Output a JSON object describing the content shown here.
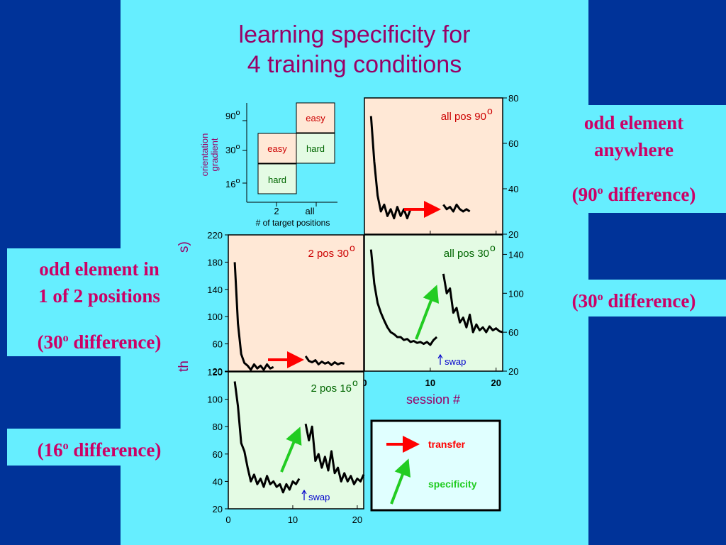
{
  "title": {
    "line1": "learning specificity for",
    "line2": "4 training conditions"
  },
  "callouts": {
    "top_right": {
      "line1": "odd element",
      "line2": "anywhere",
      "line3_pre": "(90",
      "sup": "o",
      "line3_post": " difference)"
    },
    "mid_right": {
      "pre": "(30",
      "sup": "o",
      "post": " difference)"
    },
    "mid_left": {
      "line1": "odd element in",
      "line2": "1 of 2 positions",
      "line3_pre": "(30",
      "sup": "o",
      "line3_post": " difference)"
    },
    "bottom_left": {
      "pre": "(16",
      "sup": "o",
      "post": " difference)"
    }
  },
  "design_grid": {
    "ylabel_line1": "orientation",
    "ylabel_line2": "gradient",
    "xlabel": "# of target positions",
    "y_ticks": [
      {
        "label": "90",
        "sup": "o"
      },
      {
        "label": "30",
        "sup": "o"
      },
      {
        "label": "16",
        "sup": "o"
      }
    ],
    "x_ticks": [
      "2",
      "all"
    ],
    "cells": {
      "all_90": "easy",
      "pos2_30": "easy",
      "all_30": "hard",
      "pos2_16": "hard"
    }
  },
  "legend": {
    "transfer": "transfer",
    "specificity": "specificity"
  },
  "axis_text": {
    "session_label": "session #",
    "threshold_label_fragment_left": "th",
    "threshold_label_fragment_top": "s)",
    "swap": "swap"
  },
  "chart_data": [
    {
      "type": "line",
      "panel": "all pos 90",
      "label": "all pos 90",
      "label_sup": "o",
      "x_ticks": [
        "0",
        "10",
        "20"
      ],
      "y_axis_side": "right",
      "ylim": [
        20,
        80
      ],
      "y_ticks": [
        20,
        40,
        60,
        80
      ],
      "xlim": [
        0,
        21
      ],
      "series": [
        {
          "x": [
            1,
            1.5,
            2,
            2.5,
            3,
            3.5,
            4,
            4.5,
            5,
            5.5,
            6,
            6.5,
            7
          ],
          "y": [
            72,
            52,
            37,
            30,
            33,
            28,
            31,
            27,
            32,
            28,
            31,
            27,
            31
          ]
        },
        {
          "x": [
            12,
            12.5,
            13,
            13.5,
            14,
            14.5,
            15,
            15.5,
            16
          ],
          "y": [
            33,
            31,
            32,
            30,
            33,
            31,
            30,
            31,
            30
          ]
        }
      ],
      "annotations": [
        "transfer arrow"
      ]
    },
    {
      "type": "line",
      "panel": "all pos 30",
      "label": "all pos 30",
      "label_sup": "o",
      "x_ticks": [
        "0",
        "10",
        "20"
      ],
      "y_axis_side": "right",
      "ylim": [
        20,
        160
      ],
      "y_ticks": [
        20,
        60,
        100,
        140
      ],
      "xlim": [
        0,
        21
      ],
      "series": [
        {
          "x": [
            1,
            1.5,
            2,
            2.5,
            3,
            3.5,
            4,
            4.5,
            5,
            5.5,
            6,
            6.5,
            7,
            7.5,
            8,
            8.5,
            9,
            9.5,
            10,
            10.5,
            11
          ],
          "y": [
            145,
            110,
            90,
            80,
            72,
            65,
            60,
            58,
            55,
            55,
            52,
            53,
            50,
            51,
            49,
            50,
            48,
            50,
            47,
            52,
            55
          ]
        },
        {
          "x": [
            12,
            12.5,
            13,
            13.5,
            14,
            14.5,
            15,
            15.5,
            16,
            16.5,
            17,
            17.5,
            18,
            18.5,
            19,
            19.5,
            20,
            20.5,
            21
          ],
          "y": [
            120,
            100,
            105,
            80,
            85,
            70,
            75,
            65,
            78,
            60,
            68,
            62,
            65,
            60,
            66,
            62,
            64,
            61,
            60
          ]
        }
      ],
      "annotations": [
        "specificity arrow",
        "swap"
      ]
    },
    {
      "type": "line",
      "panel": "2 pos 30",
      "label": "2 pos 30",
      "label_sup": "o",
      "y_axis_side": "left",
      "ylim": [
        20,
        220
      ],
      "y_ticks": [
        20,
        60,
        100,
        140,
        180,
        220
      ],
      "xlim": [
        0,
        21
      ],
      "series": [
        {
          "x": [
            1,
            1.5,
            2,
            2.5,
            3,
            3.5,
            4,
            4.5,
            5,
            5.5,
            6,
            6.5,
            7
          ],
          "y": [
            180,
            90,
            45,
            32,
            28,
            22,
            30,
            24,
            28,
            22,
            30,
            24,
            26
          ]
        },
        {
          "x": [
            12,
            12.5,
            13,
            13.5,
            14,
            14.5,
            15,
            15.5,
            16,
            16.5,
            17,
            17.5,
            18
          ],
          "y": [
            42,
            35,
            33,
            36,
            30,
            34,
            31,
            33,
            29,
            33,
            30,
            32,
            31
          ]
        }
      ],
      "annotations": [
        "transfer arrow"
      ]
    },
    {
      "type": "line",
      "panel": "2 pos 16",
      "label": "2 pos 16",
      "label_sup": "o",
      "x_ticks": [
        "0",
        "10",
        "20"
      ],
      "y_axis_side": "left",
      "ylim": [
        20,
        120
      ],
      "y_ticks": [
        20,
        40,
        60,
        80,
        100,
        120
      ],
      "xlim": [
        0,
        21
      ],
      "series": [
        {
          "x": [
            1,
            1.5,
            2,
            2.5,
            3,
            3.5,
            4,
            4.5,
            5,
            5.5,
            6,
            6.5,
            7,
            7.5,
            8,
            8.5,
            9,
            9.5,
            10,
            10.5,
            11
          ],
          "y": [
            113,
            95,
            68,
            62,
            50,
            40,
            45,
            38,
            42,
            36,
            44,
            38,
            40,
            36,
            38,
            32,
            38,
            34,
            40,
            38,
            42
          ]
        },
        {
          "x": [
            12,
            12.5,
            13,
            13.5,
            14,
            14.5,
            15,
            15.5,
            16,
            16.5,
            17,
            17.5,
            18,
            18.5,
            19,
            19.5,
            20,
            20.5,
            21
          ],
          "y": [
            82,
            70,
            80,
            55,
            60,
            50,
            58,
            48,
            62,
            46,
            50,
            40,
            46,
            40,
            44,
            38,
            42,
            40,
            45
          ]
        }
      ],
      "annotations": [
        "specificity arrow",
        "swap"
      ]
    }
  ],
  "colors": {
    "background": "#003399",
    "panel": "#66eeff",
    "title": "#990066",
    "callout_text": "#cc0066",
    "easy_fill": "#ffe8d6",
    "hard_fill": "#e4fbe4",
    "transfer_arrow": "#ff0000",
    "specificity_arrow": "#22cc22",
    "swap_text": "#0000cc"
  }
}
